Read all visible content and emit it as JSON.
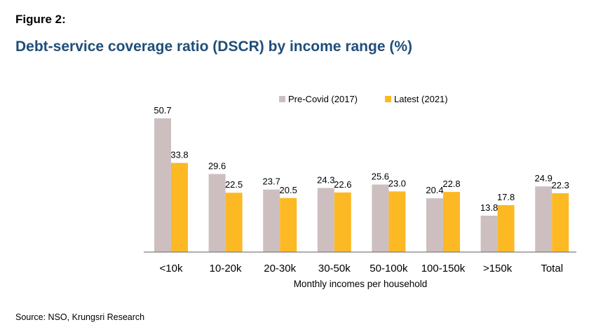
{
  "figure_label": "Figure 2:",
  "title": "Debt-service coverage ratio (DSCR) by income range (%)",
  "source": "Source: NSO, Krungsri Research",
  "chart_data": {
    "type": "bar",
    "categories": [
      "<10k",
      "10-20k",
      "20-30k",
      "30-50k",
      "50-100k",
      "100-150k",
      ">150k",
      "Total"
    ],
    "series": [
      {
        "name": "Pre-Covid (2017)",
        "color": "#cdbfbf",
        "values": [
          50.7,
          29.6,
          23.7,
          24.3,
          25.6,
          20.4,
          13.8,
          24.9
        ]
      },
      {
        "name": "Latest (2021)",
        "color": "#fdb924",
        "values": [
          33.8,
          22.5,
          20.5,
          22.6,
          23.0,
          22.8,
          17.8,
          22.3
        ]
      }
    ],
    "value_labels": [
      [
        "50.7",
        "29.6",
        "23.7",
        "24.3",
        "25.6",
        "20.4",
        "13.8",
        "24.9"
      ],
      [
        "33.8",
        "22.5",
        "20.5",
        "22.6",
        "23.0",
        "22.8",
        "17.8",
        "22.3"
      ]
    ],
    "xlabel": "Monthly incomes per household",
    "ylabel": "",
    "ylim": [
      0,
      50.7
    ],
    "grid": false,
    "legend_position": "top"
  }
}
